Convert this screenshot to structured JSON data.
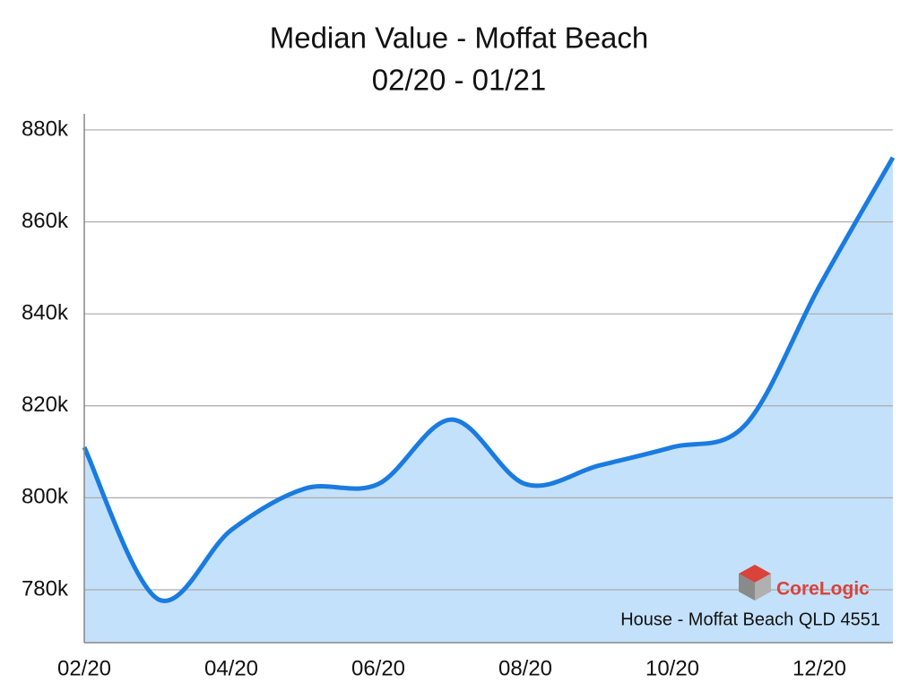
{
  "chart_data": {
    "type": "area",
    "title": "Median Value - Moffat Beach",
    "subtitle": "02/20 - 01/21",
    "categories": [
      "02/20",
      null,
      "04/20",
      null,
      "06/20",
      null,
      "08/20",
      null,
      "10/20",
      null,
      "12/20",
      null
    ],
    "series": [
      {
        "color": "#1a7be0",
        "fill": "#c4e1fb",
        "values": [
          811000,
          778000,
          793000,
          802000,
          803000,
          817000,
          803000,
          807000,
          811000,
          816000,
          846000,
          874000
        ]
      }
    ],
    "ylim": [
      768500,
      883500
    ],
    "yticks": [
      {
        "value": 780000,
        "label": "780k"
      },
      {
        "value": 800000,
        "label": "800k"
      },
      {
        "value": 820000,
        "label": "820k"
      },
      {
        "value": 840000,
        "label": "840k"
      },
      {
        "value": 860000,
        "label": "860k"
      },
      {
        "value": 880000,
        "label": "880k"
      }
    ],
    "grid": true,
    "source": "CoreLogic",
    "annotation": "House - Moffat Beach QLD 4551"
  }
}
